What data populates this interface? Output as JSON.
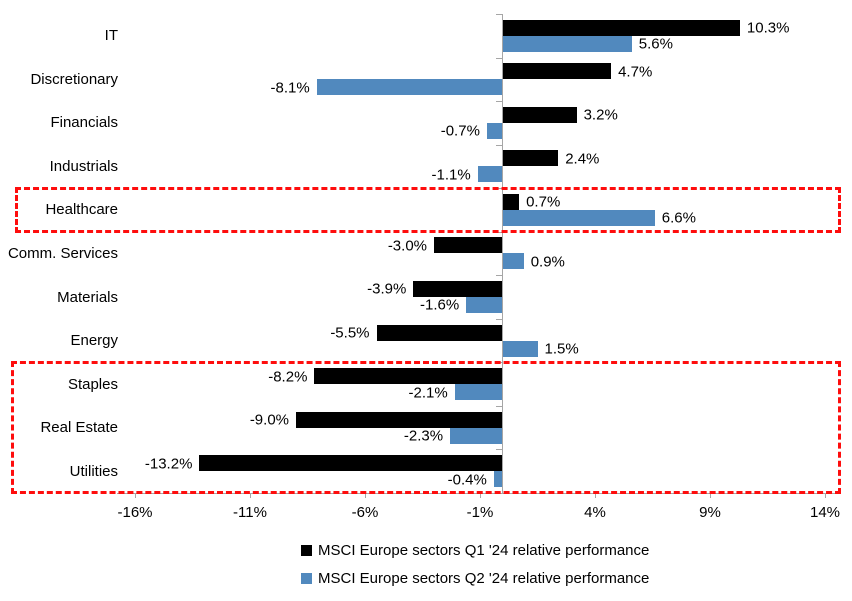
{
  "chart_data": {
    "type": "bar",
    "orientation": "horizontal",
    "title": "",
    "categories": [
      "IT",
      "Discretionary",
      "Financials",
      "Industrials",
      "Healthcare",
      "Comm. Services",
      "Materials",
      "Energy",
      "Staples",
      "Real Estate",
      "Utilities"
    ],
    "series": [
      {
        "name": "MSCI Europe sectors Q1 '24 relative performance",
        "color": "#000000",
        "values": [
          10.3,
          4.7,
          3.2,
          2.4,
          0.7,
          -3.0,
          -3.9,
          -5.5,
          -8.2,
          -9.0,
          -13.2
        ],
        "labels": [
          "10.3%",
          "4.7%",
          "3.2%",
          "2.4%",
          "0.7%",
          "-3.0%",
          "-3.9%",
          "-5.5%",
          "-8.2%",
          "-9.0%",
          "-13.2%"
        ]
      },
      {
        "name": "MSCI Europe sectors Q2 '24 relative performance",
        "color": "#5189be",
        "values": [
          5.6,
          -8.1,
          -0.7,
          -1.1,
          6.6,
          0.9,
          -1.6,
          1.5,
          -2.1,
          -2.3,
          -0.4
        ],
        "labels": [
          "5.6%",
          "-8.1%",
          "-0.7%",
          "-1.1%",
          "6.6%",
          "0.9%",
          "-1.6%",
          "1.5%",
          "-2.1%",
          "-2.3%",
          "-0.4%"
        ]
      }
    ],
    "x_axis": {
      "tick_labels": [
        "-16%",
        "-11%",
        "-6%",
        "-1%",
        "4%",
        "9%",
        "14%"
      ],
      "tick_values": [
        -16,
        -11,
        -6,
        -1,
        4,
        9,
        14
      ],
      "range": [
        -16.8,
        14.7
      ]
    },
    "grid": false,
    "data_labels": true,
    "legend_position": "bottom",
    "highlight_boxes": [
      {
        "categories": [
          "Healthcare"
        ],
        "color": "#fe0d0d",
        "style": "dashed"
      },
      {
        "categories": [
          "Staples",
          "Real Estate",
          "Utilities"
        ],
        "color": "#fe0d0d",
        "style": "dashed"
      }
    ]
  }
}
